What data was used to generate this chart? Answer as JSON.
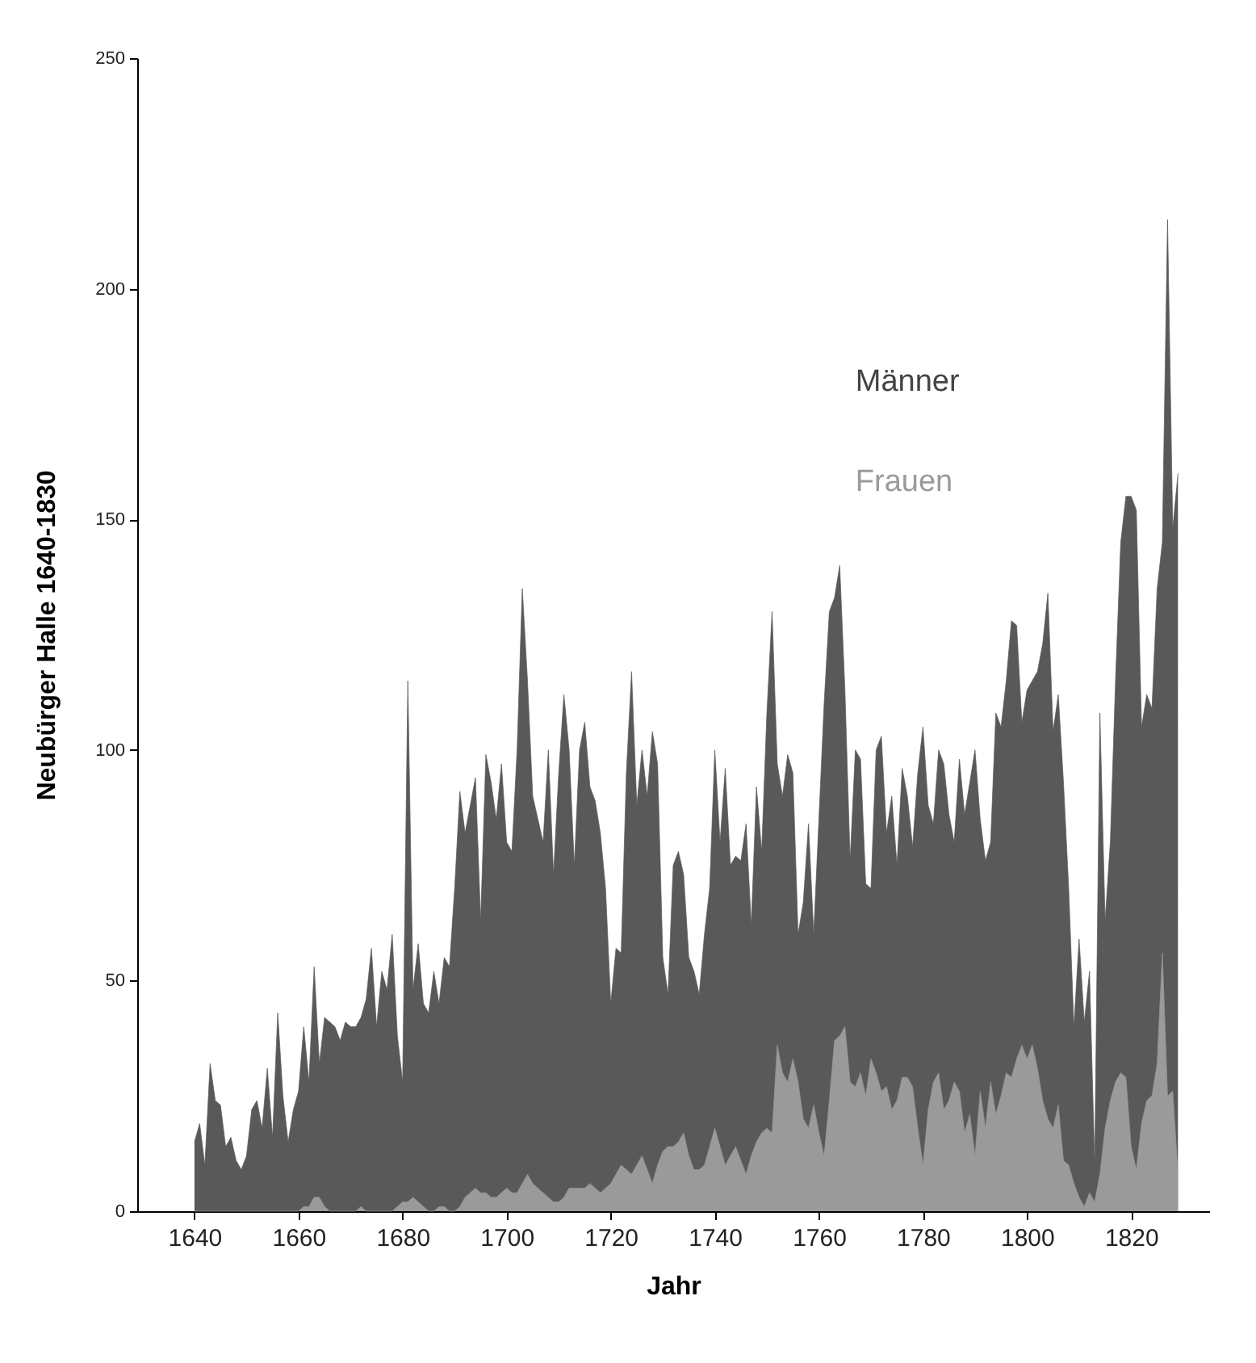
{
  "chart_data": {
    "type": "area",
    "xlabel": "Jahr",
    "ylabel": "Neubürger Halle 1640-1830",
    "xlim": [
      1629,
      1835
    ],
    "ylim": [
      0,
      250
    ],
    "xticks": [
      1640,
      1660,
      1680,
      1700,
      1720,
      1740,
      1760,
      1780,
      1800,
      1820
    ],
    "yticks": [
      0,
      50,
      100,
      150,
      200,
      250
    ],
    "grid": false,
    "legend": false,
    "x": [
      1640,
      1641,
      1642,
      1643,
      1644,
      1645,
      1646,
      1647,
      1648,
      1649,
      1650,
      1651,
      1652,
      1653,
      1654,
      1655,
      1656,
      1657,
      1658,
      1659,
      1660,
      1661,
      1662,
      1663,
      1664,
      1665,
      1666,
      1667,
      1668,
      1669,
      1670,
      1671,
      1672,
      1673,
      1674,
      1675,
      1676,
      1677,
      1678,
      1679,
      1680,
      1681,
      1682,
      1683,
      1684,
      1685,
      1686,
      1687,
      1688,
      1689,
      1690,
      1691,
      1692,
      1693,
      1694,
      1695,
      1696,
      1697,
      1698,
      1699,
      1700,
      1701,
      1702,
      1703,
      1704,
      1705,
      1706,
      1707,
      1708,
      1709,
      1710,
      1711,
      1712,
      1713,
      1714,
      1715,
      1716,
      1717,
      1718,
      1719,
      1720,
      1721,
      1722,
      1723,
      1724,
      1725,
      1726,
      1727,
      1728,
      1729,
      1730,
      1731,
      1732,
      1733,
      1734,
      1735,
      1736,
      1737,
      1738,
      1739,
      1740,
      1741,
      1742,
      1743,
      1744,
      1745,
      1746,
      1747,
      1748,
      1749,
      1750,
      1751,
      1752,
      1753,
      1754,
      1755,
      1756,
      1757,
      1758,
      1759,
      1760,
      1761,
      1762,
      1763,
      1764,
      1765,
      1766,
      1767,
      1768,
      1769,
      1770,
      1771,
      1772,
      1773,
      1774,
      1775,
      1776,
      1777,
      1778,
      1779,
      1780,
      1781,
      1782,
      1783,
      1784,
      1785,
      1786,
      1787,
      1788,
      1789,
      1790,
      1791,
      1792,
      1793,
      1794,
      1795,
      1796,
      1797,
      1798,
      1799,
      1800,
      1801,
      1802,
      1803,
      1804,
      1805,
      1806,
      1807,
      1808,
      1809,
      1810,
      1811,
      1812,
      1813,
      1814,
      1815,
      1816,
      1817,
      1818,
      1819,
      1820,
      1821,
      1822,
      1823,
      1824,
      1825,
      1826,
      1827,
      1828,
      1829
    ],
    "series": [
      {
        "name": "Männer",
        "color": "#595959",
        "values": [
          15,
          19,
          10,
          32,
          24,
          23,
          14,
          16,
          11,
          9,
          12,
          22,
          24,
          18,
          31,
          16,
          43,
          25,
          15,
          22,
          26,
          40,
          28,
          53,
          32,
          42,
          41,
          40,
          37,
          41,
          40,
          40,
          42,
          46,
          57,
          40,
          52,
          48,
          60,
          38,
          28,
          115,
          48,
          58,
          45,
          43,
          52,
          45,
          55,
          53,
          70,
          91,
          82,
          88,
          94,
          63,
          99,
          93,
          85,
          97,
          80,
          78,
          100,
          135,
          115,
          90,
          85,
          80,
          100,
          73,
          95,
          112,
          100,
          75,
          100,
          106,
          92,
          89,
          82,
          70,
          45,
          57,
          56,
          95,
          117,
          88,
          100,
          90,
          104,
          97,
          55,
          47,
          75,
          78,
          73,
          55,
          52,
          47,
          60,
          70,
          100,
          80,
          96,
          75,
          77,
          76,
          84,
          62,
          92,
          78,
          108,
          130,
          97,
          90,
          99,
          95,
          60,
          67,
          84,
          60,
          85,
          110,
          130,
          133,
          140,
          113,
          76,
          100,
          98,
          71,
          70,
          100,
          103,
          82,
          90,
          75,
          96,
          90,
          79,
          95,
          105,
          88,
          84,
          100,
          97,
          86,
          80,
          98,
          86,
          93,
          100,
          85,
          76,
          80,
          108,
          105,
          115,
          128,
          127,
          106,
          113,
          115,
          117,
          123,
          134,
          104,
          112,
          93,
          70,
          40,
          59,
          41,
          52,
          10,
          108,
          63,
          80,
          115,
          145,
          155,
          155,
          152,
          105,
          112,
          109,
          135,
          145,
          215,
          148,
          160
        ]
      },
      {
        "name": "Frauen",
        "color": "#9a9a9a",
        "values": [
          0,
          0,
          0,
          0,
          0,
          0,
          0,
          0,
          0,
          0,
          0,
          0,
          0,
          0,
          0,
          0,
          0,
          0,
          0,
          0,
          0,
          1,
          1,
          3,
          3,
          1,
          0,
          0,
          0,
          0,
          0,
          0,
          1,
          0,
          0,
          0,
          0,
          0,
          0,
          1,
          2,
          2,
          3,
          2,
          1,
          0,
          0,
          1,
          1,
          0,
          0,
          1,
          3,
          4,
          5,
          4,
          4,
          3,
          3,
          4,
          5,
          4,
          4,
          6,
          8,
          6,
          5,
          4,
          3,
          2,
          2,
          3,
          5,
          5,
          5,
          5,
          6,
          5,
          4,
          5,
          6,
          8,
          10,
          9,
          8,
          10,
          12,
          9,
          6,
          10,
          13,
          14,
          14,
          15,
          17,
          12,
          9,
          9,
          10,
          14,
          18,
          14,
          10,
          12,
          14,
          11,
          8,
          12,
          15,
          17,
          18,
          17,
          36,
          30,
          28,
          33,
          28,
          20,
          18,
          23,
          17,
          12,
          24,
          37,
          38,
          40,
          28,
          27,
          30,
          25,
          33,
          30,
          26,
          27,
          22,
          24,
          29,
          29,
          27,
          18,
          10,
          22,
          28,
          30,
          22,
          24,
          28,
          26,
          17,
          21,
          12,
          26,
          18,
          28,
          21,
          25,
          30,
          29,
          33,
          36,
          33,
          36,
          31,
          24,
          20,
          18,
          23,
          11,
          10,
          6,
          3,
          1,
          4,
          2,
          8,
          18,
          24,
          28,
          30,
          29,
          14,
          9,
          19,
          24,
          25,
          32,
          56,
          25,
          26,
          8
        ]
      }
    ]
  }
}
